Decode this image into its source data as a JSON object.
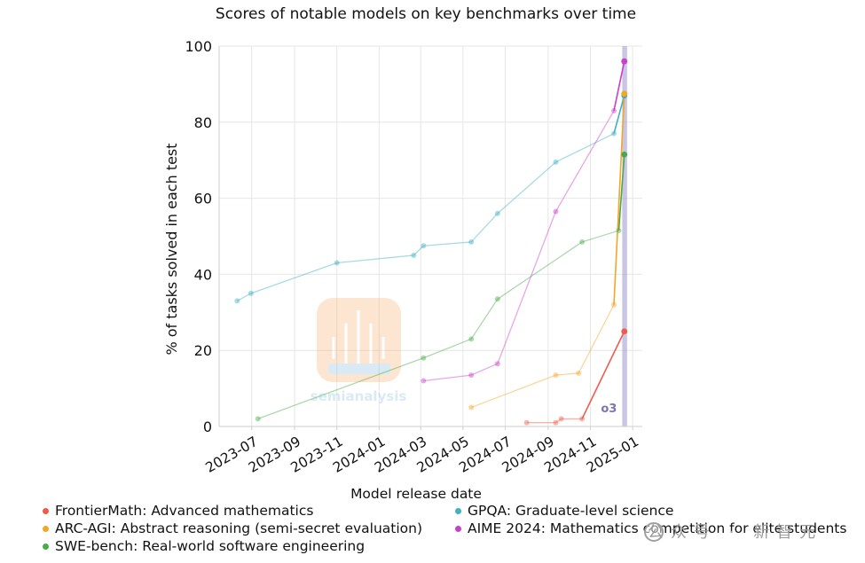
{
  "chart_data": {
    "type": "line",
    "title": "Scores of notable models on key benchmarks over time",
    "xlabel": "Model release date",
    "ylabel": "% of tasks solved in each test",
    "ylim": [
      0,
      100
    ],
    "xlim": [
      "2023-05-15",
      "2025-01-15"
    ],
    "yticks": [
      0,
      20,
      40,
      60,
      80,
      100
    ],
    "xticks": [
      "2023-07",
      "2023-09",
      "2023-11",
      "2024-01",
      "2024-03",
      "2024-05",
      "2024-07",
      "2024-09",
      "2024-11",
      "2025-01"
    ],
    "grid": true,
    "highlight": {
      "label": "o3",
      "x_start": "2024-12-17",
      "x_end": "2024-12-24"
    },
    "series": [
      {
        "name": "GPQA: Graduate-level science",
        "color": "#3fb0c8",
        "x": [
          "2023-06-10",
          "2023-06-30",
          "2023-11-01",
          "2024-02-20",
          "2024-03-05",
          "2024-05-13",
          "2024-06-20",
          "2024-09-12",
          "2024-12-05",
          "2024-12-20"
        ],
        "y": [
          33,
          35,
          43,
          45,
          47.5,
          48.5,
          56,
          69.5,
          77,
          87
        ]
      },
      {
        "name": "AIME 2024: Mathematics competition for elite students",
        "color": "#c93fc9",
        "x": [
          "2024-03-05",
          "2024-05-13",
          "2024-06-20",
          "2024-09-12",
          "2024-12-05",
          "2024-12-20"
        ],
        "y": [
          12,
          13.5,
          16.5,
          56.5,
          83,
          96
        ]
      },
      {
        "name": "SWE-bench: Real-world software engineering",
        "color": "#4aaa4a",
        "x": [
          "2023-07-10",
          "2024-03-05",
          "2024-05-13",
          "2024-06-20",
          "2024-10-20",
          "2024-12-12",
          "2024-12-20"
        ],
        "y": [
          2,
          18,
          23,
          33.5,
          48.5,
          51.5,
          71.5
        ]
      },
      {
        "name": "ARC-AGI: Abstract reasoning (semi-secret evaluation)",
        "color": "#f5a623",
        "x": [
          "2024-05-13",
          "2024-09-12",
          "2024-10-15",
          "2024-12-05",
          "2024-12-20"
        ],
        "y": [
          5,
          13.5,
          14,
          32,
          87.5
        ]
      },
      {
        "name": "FrontierMath: Advanced mathematics",
        "color": "#f05a4a",
        "x": [
          "2024-08-01",
          "2024-09-12",
          "2024-09-20",
          "2024-10-20",
          "2024-12-20"
        ],
        "y": [
          1,
          1,
          2,
          2,
          25
        ]
      }
    ],
    "legend": [
      {
        "name": "FrontierMath: Advanced mathematics",
        "color": "#f05a4a"
      },
      {
        "name": "ARC-AGI: Abstract reasoning (semi-secret evaluation)",
        "color": "#f5a623"
      },
      {
        "name": "SWE-bench: Real-world software engineering",
        "color": "#4aaa4a"
      },
      {
        "name": "GPQA: Graduate-level science",
        "color": "#3fb0c8"
      },
      {
        "name": "AIME 2024: Mathematics competition for elite students",
        "color": "#c93fc9"
      }
    ],
    "legend_placement": "bottom"
  },
  "watermark": {
    "text": "semianalysis",
    "social": "公众号 · 新智元"
  }
}
